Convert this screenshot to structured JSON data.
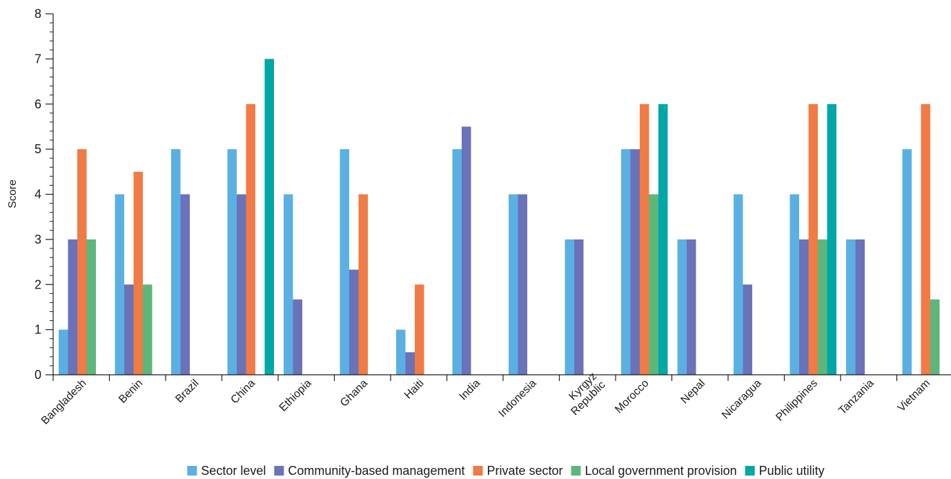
{
  "chart_data": {
    "type": "bar",
    "title": "",
    "xlabel": "",
    "ylabel": "Score",
    "ylim": [
      0,
      8
    ],
    "yticks": [
      0,
      1,
      2,
      3,
      4,
      5,
      6,
      7,
      8
    ],
    "grid": false,
    "legend_position": "bottom",
    "categories": [
      "Bangladesh",
      "Benin",
      "Brazil",
      "China",
      "Ethiopia",
      "Ghana",
      "Haiti",
      "India",
      "Indonesia",
      "Kyrgyz Republic",
      "Morocco",
      "Nepal",
      "Nicaragua",
      "Philippines",
      "Tanzania",
      "Vietnam"
    ],
    "series": [
      {
        "name": "Sector level",
        "color": "#5BB0E3",
        "values": [
          1,
          4,
          5,
          5,
          4,
          5,
          1,
          5,
          4,
          3,
          5,
          3,
          4,
          4,
          3,
          5
        ]
      },
      {
        "name": "Community-based management",
        "color": "#6A72B9",
        "values": [
          3,
          2,
          4,
          4,
          1.67,
          2.33,
          0.5,
          5.5,
          4,
          3,
          5,
          3,
          2,
          3,
          3,
          null
        ]
      },
      {
        "name": "Private sector",
        "color": "#F07B45",
        "values": [
          5,
          4.5,
          null,
          6,
          null,
          4,
          2,
          null,
          null,
          null,
          6,
          null,
          null,
          6,
          null,
          6
        ]
      },
      {
        "name": "Local government provision",
        "color": "#5DB77A",
        "values": [
          3,
          2,
          null,
          null,
          null,
          null,
          null,
          null,
          null,
          null,
          4,
          null,
          null,
          3,
          null,
          1.67
        ]
      },
      {
        "name": "Public utility",
        "color": "#00A7A7",
        "values": [
          null,
          null,
          null,
          7,
          null,
          null,
          null,
          null,
          null,
          null,
          6,
          null,
          null,
          6,
          null,
          null
        ]
      }
    ]
  }
}
